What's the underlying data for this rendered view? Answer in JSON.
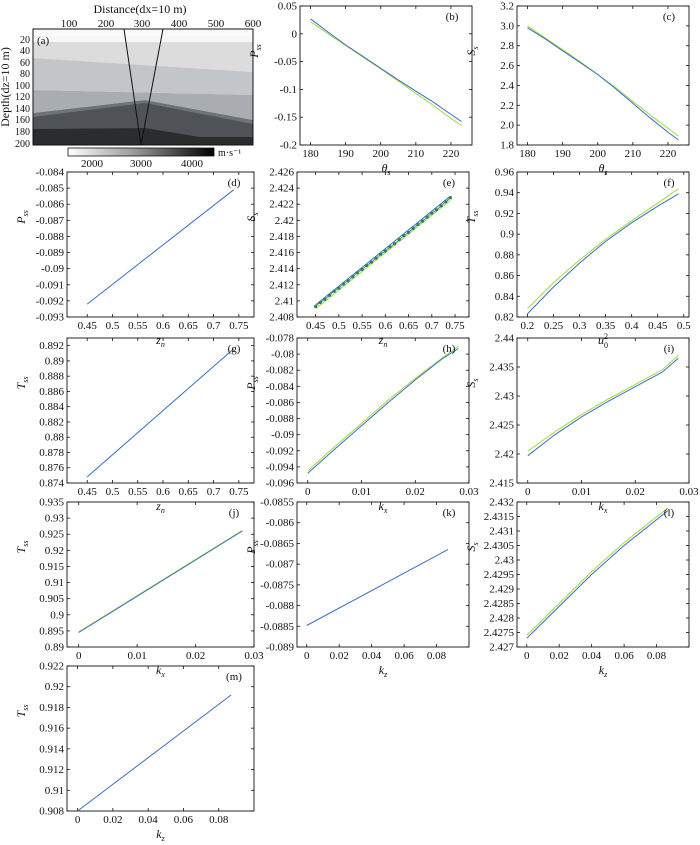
{
  "colors": {
    "line_main": "#3a6fc4",
    "line_alt": "#9bdc3c",
    "line_dark": "#2e7d6a",
    "axes": "#111111"
  },
  "panel_a": {
    "label": "(a)",
    "top_label": "Distance(dx=10 m)",
    "side_label": "Depth(dz=10 m)",
    "x_ticks": [
      "100",
      "200",
      "300",
      "400",
      "500",
      "600"
    ],
    "y_ticks": [
      "20",
      "40",
      "60",
      "80",
      "100",
      "120",
      "140",
      "160",
      "180",
      "200"
    ],
    "colorbar_ticks": [
      "2000",
      "3000",
      "4000"
    ],
    "colorbar_unit": "m·s⁻¹"
  },
  "chart_data": [
    {
      "id": "b",
      "type": "line",
      "label": "(b)",
      "xlabel": "θ",
      "xlabel_sub": "s",
      "ylabel": "P",
      "ylabel_sub": "ss",
      "xlim": [
        177,
        226
      ],
      "ylim": [
        -0.2,
        0.05
      ],
      "xticks": [
        180,
        190,
        200,
        210,
        220
      ],
      "xticklabels": [
        "180",
        "190",
        "200",
        "210",
        "220"
      ],
      "yticks": [
        0.05,
        0,
        -0.05,
        -0.1,
        -0.15,
        -0.2
      ],
      "yticklabels": [
        "0.05",
        "0",
        "-0.05",
        "-0.1",
        "-0.15",
        "-0.2"
      ],
      "series": [
        {
          "color": "line_alt",
          "x": [
            180,
            185,
            190,
            195,
            200,
            205,
            210,
            215,
            220,
            223
          ],
          "y": [
            0.022,
            0.0,
            -0.021,
            -0.042,
            -0.063,
            -0.085,
            -0.107,
            -0.129,
            -0.152,
            -0.165
          ]
        },
        {
          "color": "line_main",
          "x": [
            180,
            185,
            190,
            195,
            200,
            205,
            210,
            215,
            220,
            223
          ],
          "y": [
            0.027,
            0.003,
            -0.02,
            -0.041,
            -0.062,
            -0.083,
            -0.103,
            -0.123,
            -0.145,
            -0.158
          ]
        }
      ]
    },
    {
      "id": "c",
      "type": "line",
      "label": "(c)",
      "xlabel": "θ",
      "xlabel_sub": "s",
      "ylabel": "S",
      "ylabel_sub": "s",
      "xlim": [
        177,
        226
      ],
      "ylim": [
        1.8,
        3.2
      ],
      "xticks": [
        180,
        190,
        200,
        210,
        220
      ],
      "xticklabels": [
        "180",
        "190",
        "200",
        "210",
        "220"
      ],
      "yticks": [
        3.2,
        3.0,
        2.8,
        2.6,
        2.4,
        2.2,
        2.0,
        1.8
      ],
      "yticklabels": [
        "3.2",
        "3.0",
        "2.8",
        "2.6",
        "2.4",
        "2.2",
        "2.0",
        "1.8"
      ],
      "series": [
        {
          "color": "line_alt",
          "x": [
            180,
            185,
            190,
            195,
            200,
            205,
            210,
            215,
            220,
            223
          ],
          "y": [
            3.0,
            2.88,
            2.76,
            2.64,
            2.51,
            2.38,
            2.24,
            2.1,
            1.97,
            1.89
          ]
        },
        {
          "color": "line_main",
          "x": [
            180,
            185,
            190,
            195,
            200,
            205,
            210,
            215,
            220,
            223
          ],
          "y": [
            2.98,
            2.87,
            2.75,
            2.63,
            2.51,
            2.37,
            2.22,
            2.07,
            1.93,
            1.85
          ]
        }
      ]
    },
    {
      "id": "d",
      "type": "line",
      "label": "(d)",
      "xlabel": "z",
      "xlabel_sub": "n",
      "ylabel": "P",
      "ylabel_sub": "ss",
      "xlim": [
        0.41,
        0.78
      ],
      "ylim": [
        -0.093,
        -0.084
      ],
      "xticks": [
        0.45,
        0.5,
        0.55,
        0.6,
        0.65,
        0.7,
        0.75
      ],
      "xticklabels": [
        "0.45",
        "0.5",
        "0.55",
        "0.6",
        "0.65",
        "0.7",
        "0.75"
      ],
      "yticks": [
        -0.084,
        -0.085,
        -0.086,
        -0.087,
        -0.088,
        -0.089,
        -0.09,
        -0.091,
        -0.092,
        -0.093
      ],
      "yticklabels": [
        "-0.084",
        "-0.085",
        "-0.086",
        "-0.087",
        "-0.088",
        "-0.089",
        "-0.09",
        "-0.091",
        "-0.092",
        "-0.093"
      ],
      "series": [
        {
          "color": "line_main",
          "x": [
            0.45,
            0.74
          ],
          "y": [
            -0.0922,
            -0.0851
          ]
        }
      ]
    },
    {
      "id": "e",
      "type": "line",
      "label": "(e)",
      "xlabel": "z",
      "xlabel_sub": "n",
      "ylabel": "S",
      "ylabel_sub": "s",
      "xlim": [
        0.41,
        0.78
      ],
      "ylim": [
        2.408,
        2.426
      ],
      "xticks": [
        0.45,
        0.5,
        0.55,
        0.6,
        0.65,
        0.7,
        0.75
      ],
      "xticklabels": [
        "0.45",
        "0.5",
        "0.55",
        "0.6",
        "0.65",
        "0.7",
        "0.75"
      ],
      "yticks": [
        2.426,
        2.424,
        2.422,
        2.42,
        2.418,
        2.416,
        2.414,
        2.412,
        2.41,
        2.408
      ],
      "yticklabels": [
        "2.426",
        "2.424",
        "2.422",
        "2.42",
        "2.418",
        "2.416",
        "2.414",
        "2.412",
        "2.41",
        "2.408"
      ],
      "series": [
        {
          "color": "line_alt",
          "x": [
            0.45,
            0.74
          ],
          "y": [
            2.409,
            2.4225
          ]
        },
        {
          "color": "line_main",
          "x": [
            0.45,
            0.74
          ],
          "y": [
            2.4095,
            2.423
          ]
        },
        {
          "color": "line_dark",
          "markers": true,
          "x": [
            0.45,
            0.46,
            0.47,
            0.48,
            0.49,
            0.5,
            0.51,
            0.52,
            0.53,
            0.54,
            0.55,
            0.56,
            0.57,
            0.58,
            0.59,
            0.6,
            0.61,
            0.62,
            0.63,
            0.64,
            0.65,
            0.66,
            0.67,
            0.68,
            0.69,
            0.7,
            0.71,
            0.72,
            0.73,
            0.74
          ],
          "y": [
            2.4093,
            2.4098,
            2.4102,
            2.4107,
            2.4112,
            2.4116,
            2.4121,
            2.4125,
            2.413,
            2.4135,
            2.4139,
            2.4144,
            2.4148,
            2.4153,
            2.4158,
            2.4162,
            2.4167,
            2.4171,
            2.4176,
            2.4181,
            2.4185,
            2.419,
            2.4195,
            2.4199,
            2.4204,
            2.4209,
            2.4213,
            2.4218,
            2.4223,
            2.4228
          ]
        }
      ]
    },
    {
      "id": "f",
      "type": "line",
      "label": "(f)",
      "xlabel": "u",
      "xlabel_sub": "0",
      "xlabel_sup": "2",
      "ylabel": "T",
      "ylabel_sub": "ss",
      "xlim": [
        0.18,
        0.51
      ],
      "ylim": [
        0.82,
        0.96
      ],
      "xticks": [
        0.2,
        0.25,
        0.3,
        0.35,
        0.4,
        0.45,
        0.5
      ],
      "xticklabels": [
        "0.2",
        "0.25",
        "0.3",
        "0.35",
        "0.4",
        "0.45",
        "0.5"
      ],
      "yticks": [
        0.96,
        0.94,
        0.92,
        0.9,
        0.88,
        0.86,
        0.84,
        0.82
      ],
      "yticklabels": [
        "0.96",
        "0.94",
        "0.92",
        "0.9",
        "0.88",
        "0.86",
        "0.84",
        "0.82"
      ],
      "series": [
        {
          "color": "line_alt",
          "x": [
            0.2,
            0.25,
            0.3,
            0.35,
            0.4,
            0.45,
            0.49
          ],
          "y": [
            0.828,
            0.853,
            0.875,
            0.895,
            0.913,
            0.93,
            0.944
          ]
        },
        {
          "color": "line_main",
          "x": [
            0.2,
            0.25,
            0.3,
            0.35,
            0.4,
            0.45,
            0.49
          ],
          "y": [
            0.823,
            0.849,
            0.872,
            0.893,
            0.911,
            0.927,
            0.939
          ]
        }
      ]
    },
    {
      "id": "g",
      "type": "line",
      "label": "(g)",
      "xlabel": "z",
      "xlabel_sub": "n",
      "ylabel": "T",
      "ylabel_sub": "ss",
      "xlim": [
        0.41,
        0.78
      ],
      "ylim": [
        0.874,
        0.893
      ],
      "xticks": [
        0.45,
        0.5,
        0.55,
        0.6,
        0.65,
        0.7,
        0.75
      ],
      "xticklabels": [
        "0.45",
        "0.5",
        "0.55",
        "0.6",
        "0.65",
        "0.7",
        "0.75"
      ],
      "yticks": [
        0.892,
        0.89,
        0.888,
        0.886,
        0.884,
        0.882,
        0.88,
        0.878,
        0.876,
        0.874
      ],
      "yticklabels": [
        "0.892",
        "0.89",
        "0.888",
        "0.886",
        "0.884",
        "0.882",
        "0.88",
        "0.878",
        "0.876",
        "0.874"
      ],
      "series": [
        {
          "color": "line_main",
          "x": [
            0.45,
            0.74
          ],
          "y": [
            0.8748,
            0.8916
          ]
        }
      ]
    },
    {
      "id": "h",
      "type": "line",
      "label": "(h)",
      "xlabel": "k",
      "xlabel_sub": "x",
      "ylabel": "P",
      "ylabel_sub": "ss",
      "xlim": [
        -0.002,
        0.03
      ],
      "ylim": [
        -0.096,
        -0.078
      ],
      "xticks": [
        0,
        0.01,
        0.02,
        0.03
      ],
      "xticklabels": [
        "0",
        "0.01",
        "0.02",
        "0.03"
      ],
      "yticks": [
        -0.078,
        -0.08,
        -0.082,
        -0.084,
        -0.086,
        -0.088,
        -0.09,
        -0.092,
        -0.094,
        -0.096
      ],
      "yticklabels": [
        "-0.078",
        "-0.08",
        "-0.082",
        "-0.084",
        "-0.086",
        "-0.088",
        "-0.09",
        "-0.092",
        "-0.094",
        "-0.096"
      ],
      "series": [
        {
          "color": "line_alt",
          "x": [
            0,
            0.005,
            0.01,
            0.015,
            0.02,
            0.025,
            0.028
          ],
          "y": [
            -0.0945,
            -0.0915,
            -0.0886,
            -0.0857,
            -0.083,
            -0.0805,
            -0.079
          ]
        },
        {
          "color": "line_main",
          "x": [
            0,
            0.005,
            0.01,
            0.015,
            0.02,
            0.025,
            0.028
          ],
          "y": [
            -0.0948,
            -0.0918,
            -0.0889,
            -0.086,
            -0.0832,
            -0.0806,
            -0.0793
          ]
        }
      ]
    },
    {
      "id": "i",
      "type": "line",
      "label": "(i)",
      "xlabel": "k",
      "xlabel_sub": "x",
      "ylabel": "S",
      "ylabel_sub": "s",
      "xlim": [
        -0.002,
        0.03
      ],
      "ylim": [
        2.415,
        2.44
      ],
      "xticks": [
        0,
        0.01,
        0.02,
        0.03
      ],
      "xticklabels": [
        "0",
        "0.01",
        "0.02",
        "0.03"
      ],
      "yticks": [
        2.44,
        2.435,
        2.43,
        2.425,
        2.42,
        2.415
      ],
      "yticklabels": [
        "2.44",
        "2.435",
        "2.43",
        "2.425",
        "2.42",
        "2.415"
      ],
      "series": [
        {
          "color": "line_alt",
          "x": [
            0,
            0.005,
            0.01,
            0.015,
            0.02,
            0.025,
            0.028
          ],
          "y": [
            2.4205,
            2.4238,
            2.4268,
            2.4295,
            2.432,
            2.4345,
            2.437
          ]
        },
        {
          "color": "line_main",
          "x": [
            0,
            0.005,
            0.01,
            0.015,
            0.02,
            0.025,
            0.028
          ],
          "y": [
            2.4197,
            2.4233,
            2.4264,
            2.4291,
            2.4316,
            2.4341,
            2.4365
          ]
        }
      ]
    },
    {
      "id": "j",
      "type": "line",
      "label": "(j)",
      "xlabel": "k",
      "xlabel_sub": "x",
      "ylabel": "T",
      "ylabel_sub": "ss",
      "xlim": [
        -0.002,
        0.03
      ],
      "ylim": [
        0.89,
        0.935
      ],
      "xticks": [
        0,
        0.01,
        0.02,
        0.03
      ],
      "xticklabels": [
        "0",
        "0.01",
        "0.02",
        "0.03"
      ],
      "yticks": [
        0.935,
        0.93,
        0.925,
        0.92,
        0.915,
        0.91,
        0.905,
        0.9,
        0.895,
        0.89
      ],
      "yticklabels": [
        "0.935",
        "0.93",
        "0.925",
        "0.92",
        "0.915",
        "0.91",
        "0.905",
        "0.9",
        "0.895",
        "0.89"
      ],
      "series": [
        {
          "color": "line_alt",
          "x": [
            0,
            0.028
          ],
          "y": [
            0.8947,
            0.9262
          ]
        },
        {
          "color": "line_main",
          "x": [
            0,
            0.028
          ],
          "y": [
            0.8945,
            0.926
          ]
        }
      ]
    },
    {
      "id": "k",
      "type": "line",
      "label": "(k)",
      "xlabel": "k",
      "xlabel_sub": "z",
      "ylabel": "P",
      "ylabel_sub": "ss",
      "xlim": [
        -0.006,
        0.1
      ],
      "ylim": [
        -0.089,
        -0.0855
      ],
      "xticks": [
        0,
        0.02,
        0.04,
        0.06,
        0.08
      ],
      "xticklabels": [
        "0",
        "0.02",
        "0.04",
        "0.06",
        "0.08"
      ],
      "yticks": [
        -0.0855,
        -0.086,
        -0.0865,
        -0.087,
        -0.0875,
        -0.088,
        -0.0885,
        -0.089
      ],
      "yticklabels": [
        "-0.0855",
        "-0.086",
        "-0.0865",
        "-0.087",
        "-0.0875",
        "-0.088",
        "-0.0885",
        "-0.089"
      ],
      "series": [
        {
          "color": "line_main",
          "x": [
            0,
            0.087
          ],
          "y": [
            -0.08848,
            -0.08665
          ]
        }
      ]
    },
    {
      "id": "l",
      "type": "line",
      "label": "(l)",
      "xlabel": "k",
      "xlabel_sub": "z",
      "ylabel": "S",
      "ylabel_sub": "s",
      "xlim": [
        -0.006,
        0.1
      ],
      "ylim": [
        2.427,
        2.432
      ],
      "xticks": [
        0,
        0.02,
        0.04,
        0.06,
        0.08
      ],
      "xticklabels": [
        "0",
        "0.02",
        "0.04",
        "0.06",
        "0.08"
      ],
      "yticks": [
        2.432,
        2.4315,
        2.431,
        2.4305,
        2.43,
        2.4295,
        2.429,
        2.4285,
        2.428,
        2.4275,
        2.427
      ],
      "yticklabels": [
        "2.432",
        "2.4315",
        "2.431",
        "2.4305",
        "2.43",
        "2.4295",
        "2.429",
        "2.4285",
        "2.428",
        "2.4275",
        "2.427"
      ],
      "series": [
        {
          "color": "line_alt",
          "x": [
            0,
            0.02,
            0.04,
            0.06,
            0.087
          ],
          "y": [
            2.4274,
            2.4285,
            2.4296,
            2.4306,
            2.4318
          ]
        },
        {
          "color": "line_main",
          "x": [
            0,
            0.02,
            0.04,
            0.06,
            0.087
          ],
          "y": [
            2.4273,
            2.4284,
            2.4295,
            2.4305,
            2.4317
          ]
        }
      ]
    },
    {
      "id": "m",
      "type": "line",
      "label": "(m)",
      "xlabel": "k",
      "xlabel_sub": "z",
      "ylabel": "T",
      "ylabel_sub": "ss",
      "xlim": [
        -0.006,
        0.1
      ],
      "ylim": [
        0.908,
        0.922
      ],
      "xticks": [
        0,
        0.02,
        0.04,
        0.06,
        0.08
      ],
      "xticklabels": [
        "0",
        "0.02",
        "0.04",
        "0.06",
        "0.08"
      ],
      "yticks": [
        0.922,
        0.92,
        0.918,
        0.916,
        0.914,
        0.912,
        0.91,
        0.908
      ],
      "yticklabels": [
        "0.922",
        "0.92",
        "0.918",
        "0.916",
        "0.914",
        "0.912",
        "0.91",
        "0.908"
      ],
      "series": [
        {
          "color": "line_main",
          "x": [
            0,
            0.087
          ],
          "y": [
            0.908,
            0.9192
          ]
        }
      ]
    }
  ]
}
